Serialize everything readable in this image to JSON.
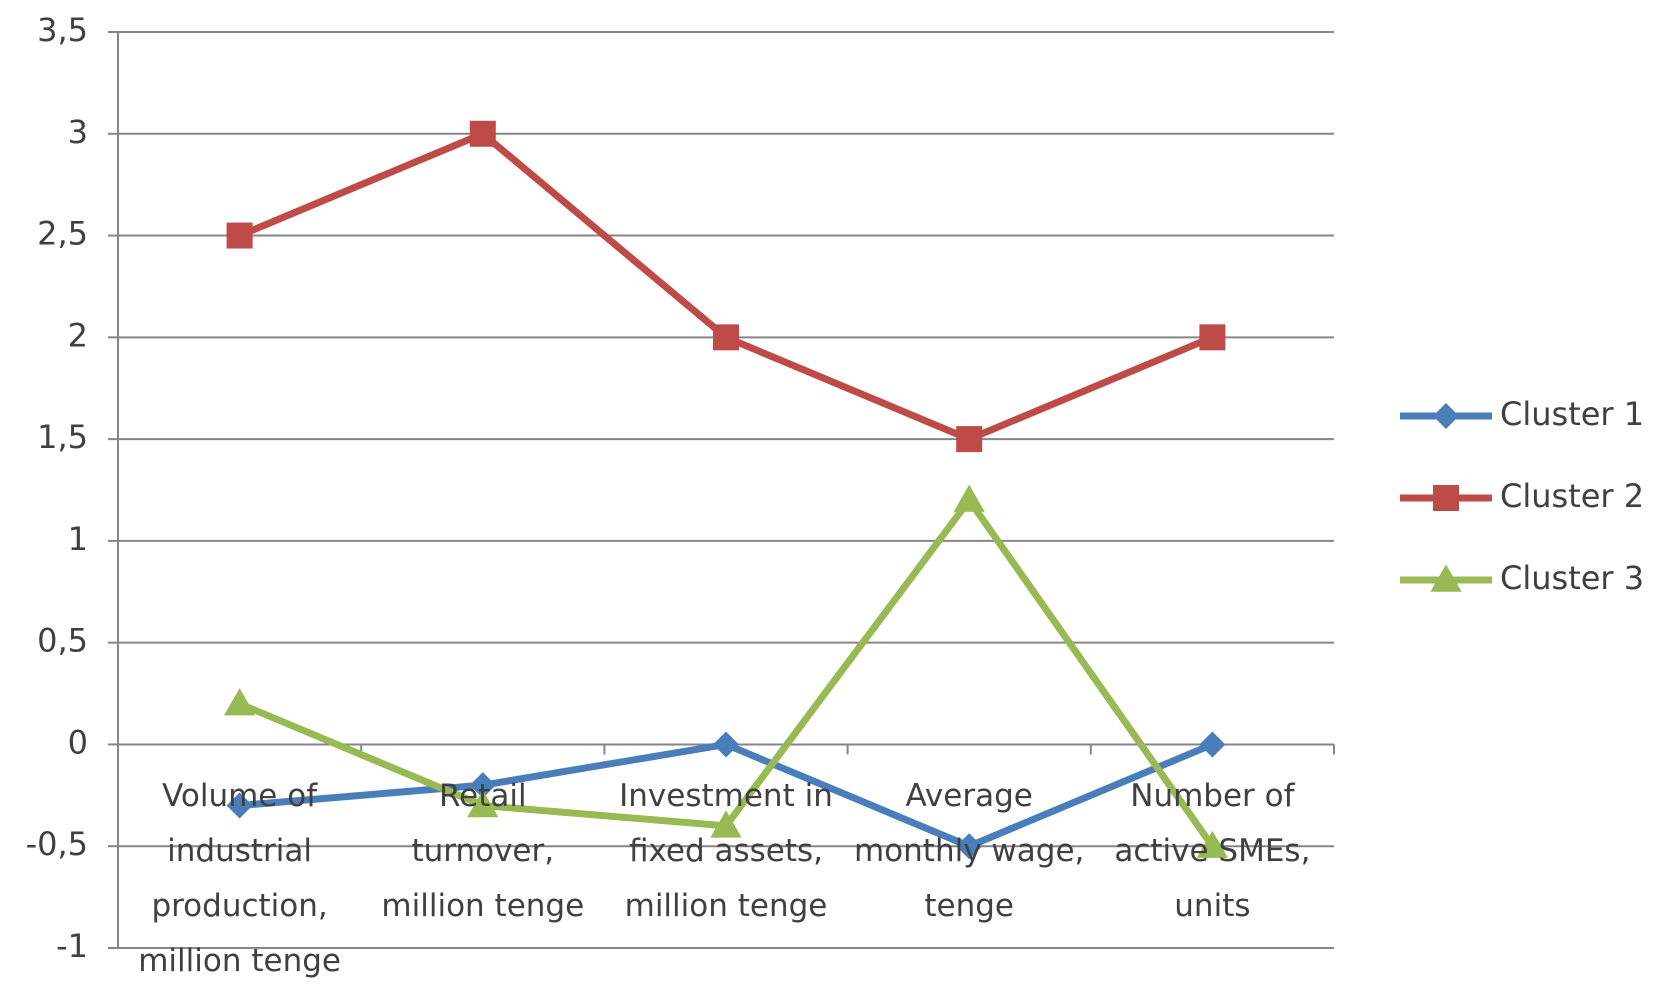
{
  "chart_data": {
    "type": "line",
    "categories": [
      "Volume of industrial production, million tenge",
      "Retail turnover, million tenge",
      "Investment in fixed assets, million tenge",
      "Average monthly wage, tenge",
      "Number of active SMEs, units"
    ],
    "series": [
      {
        "name": "Cluster 1",
        "color": "#4a7ebb",
        "marker": "diamond",
        "values": [
          -0.3,
          -0.2,
          0,
          -0.5,
          0
        ]
      },
      {
        "name": "Cluster 2",
        "color": "#be4b48",
        "marker": "square",
        "values": [
          2.5,
          3,
          2,
          1.5,
          2
        ]
      },
      {
        "name": "Cluster 3",
        "color": "#98b954",
        "marker": "triangle",
        "values": [
          0.2,
          -0.3,
          -0.4,
          1.2,
          -0.5
        ]
      }
    ],
    "ylim": [
      -1,
      3.5
    ],
    "yticks": [
      {
        "value": -1,
        "label": "-1"
      },
      {
        "value": -0.5,
        "label": "-0,5"
      },
      0,
      {
        "value": 0.5,
        "label": "0,5"
      },
      1,
      {
        "value": 1.5,
        "label": "1,5"
      },
      2,
      {
        "value": 2.5,
        "label": "2,5"
      },
      3,
      {
        "value": 3.5,
        "label": "3,5"
      }
    ],
    "grid": true,
    "legend": "right"
  }
}
